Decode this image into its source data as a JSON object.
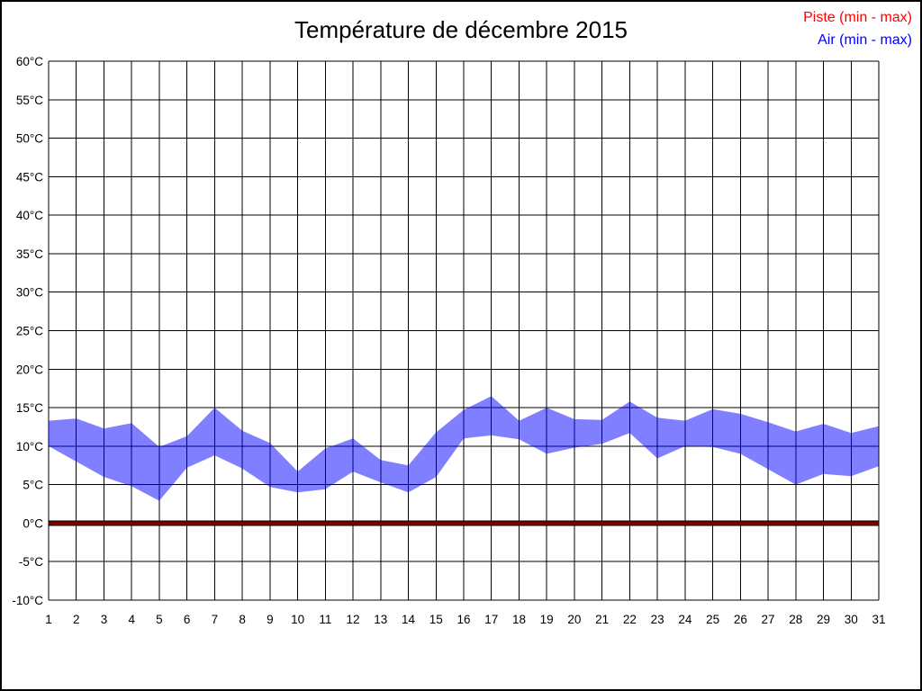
{
  "title": "Température de décembre 2015",
  "legend": {
    "piste_label": "Piste (min - max)",
    "air_label": "Air (min - max)",
    "piste_color": "#ff0000",
    "air_color": "#0000ff"
  },
  "colors": {
    "background": "#ffffff",
    "grid": "#000000",
    "air_band_fill": "#0000ff",
    "air_band_opacity": 0.5,
    "piste_band_fill": "#7a0000",
    "piste_band_edge": "#000000",
    "tick_text": "#000000"
  },
  "chart_data": {
    "type": "area",
    "title": "Température de décembre 2015",
    "xlabel": "",
    "ylabel": "°C",
    "ylim": [
      -10,
      60
    ],
    "y_tick_step": 5,
    "grid": true,
    "legend_position": "top-right",
    "x": [
      1,
      2,
      3,
      4,
      5,
      6,
      7,
      8,
      9,
      10,
      11,
      12,
      13,
      14,
      15,
      16,
      17,
      18,
      19,
      20,
      21,
      22,
      23,
      24,
      25,
      26,
      27,
      28,
      29,
      30,
      31
    ],
    "x_ticks": [
      "1",
      "2",
      "3",
      "4",
      "5",
      "6",
      "7",
      "8",
      "9",
      "10",
      "11",
      "12",
      "13",
      "14",
      "15",
      "16",
      "17",
      "18",
      "19",
      "20",
      "21",
      "22",
      "23",
      "24",
      "25",
      "26",
      "27",
      "28",
      "29",
      "30",
      "31"
    ],
    "y_ticks": [
      "60°C",
      "55°C",
      "50°C",
      "45°C",
      "40°C",
      "35°C",
      "30°C",
      "25°C",
      "20°C",
      "15°C",
      "10°C",
      "5°C",
      "0°C",
      "-5°C",
      "-10°C"
    ],
    "series": [
      {
        "name": "Piste (min - max)",
        "color": "#ff0000",
        "min": [
          0,
          0,
          0,
          0,
          0,
          0,
          0,
          0,
          0,
          0,
          0,
          0,
          0,
          0,
          0,
          0,
          0,
          0,
          0,
          0,
          0,
          0,
          0,
          0,
          0,
          0,
          0,
          0,
          0,
          0,
          0
        ],
        "max": [
          0,
          0,
          0,
          0,
          0,
          0,
          0,
          0,
          0,
          0,
          0,
          0,
          0,
          0,
          0,
          0,
          0,
          0,
          0,
          0,
          0,
          0,
          0,
          0,
          0,
          0,
          0,
          0,
          0,
          0,
          0
        ]
      },
      {
        "name": "Air (min - max)",
        "color": "#0000ff",
        "min": [
          10.0,
          8.0,
          6.0,
          4.8,
          2.9,
          7.2,
          8.8,
          7.1,
          4.7,
          4.0,
          4.4,
          6.7,
          5.3,
          4.0,
          6.0,
          11.0,
          11.4,
          10.9,
          9.0,
          9.8,
          10.3,
          11.7,
          8.4,
          10.0,
          9.9,
          9.0,
          7.0,
          5.0,
          6.4,
          6.1,
          7.4
        ],
        "max": [
          13.3,
          13.6,
          12.3,
          13.0,
          9.9,
          11.3,
          15.0,
          12.0,
          10.4,
          6.7,
          9.7,
          11.0,
          8.2,
          7.5,
          11.8,
          14.7,
          16.5,
          13.3,
          15.0,
          13.5,
          13.4,
          15.8,
          13.7,
          13.3,
          14.8,
          14.2,
          13.1,
          11.9,
          12.9,
          11.7,
          12.6
        ]
      }
    ]
  }
}
